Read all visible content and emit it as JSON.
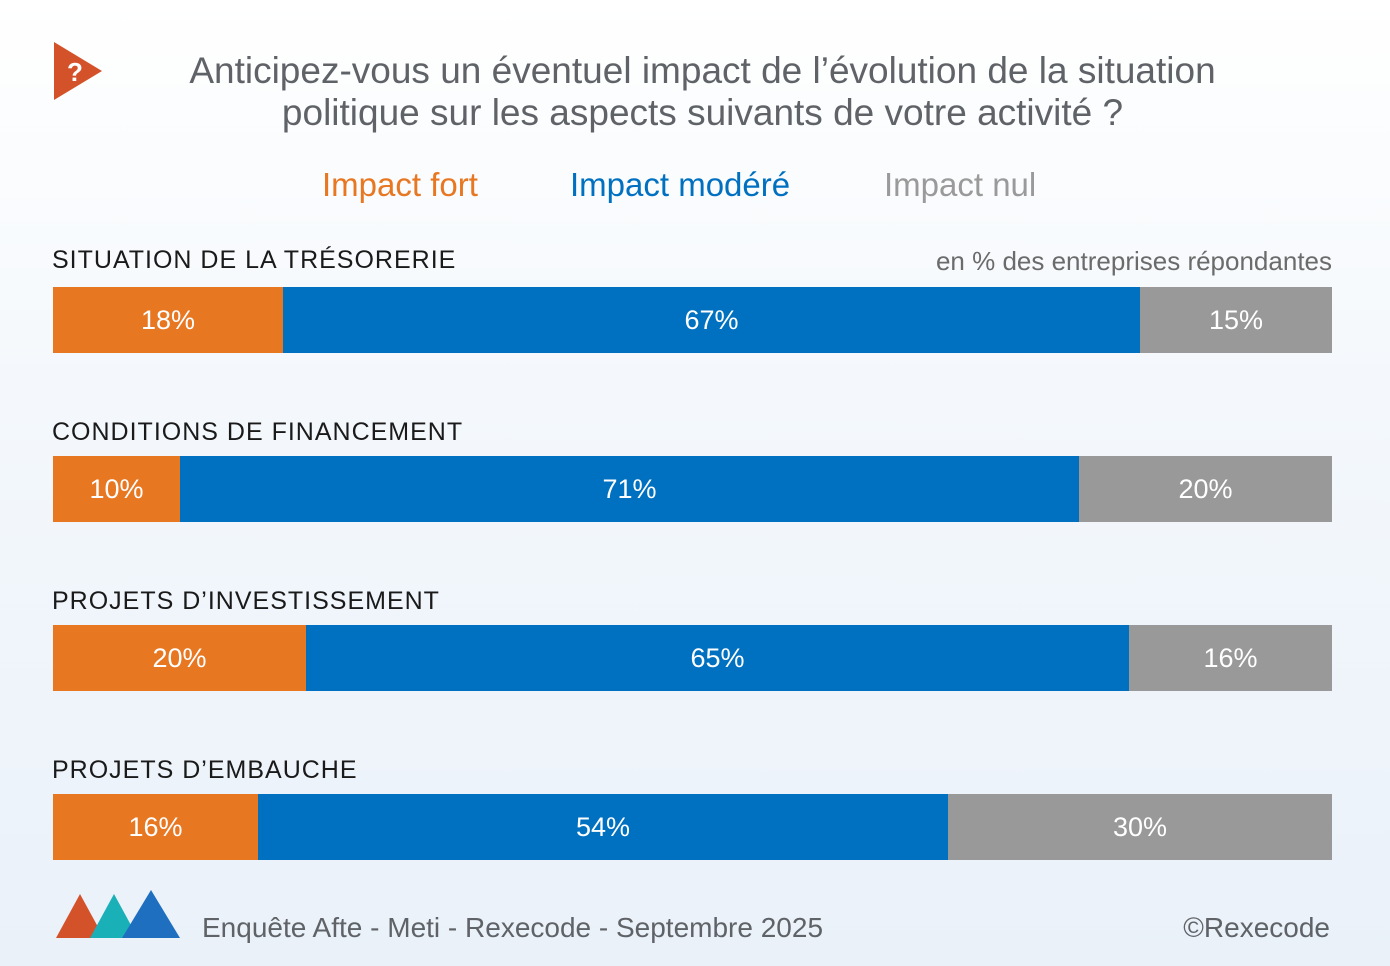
{
  "header": {
    "icon": "question-mark-icon",
    "icon_glyph": "?",
    "title_line1": "Anticipez-vous un éventuel impact de l’évolution de la situation",
    "title_line2": "politique sur les aspects suivants de votre activité ?"
  },
  "legend": {
    "fort": "Impact fort",
    "modere": "Impact modéré",
    "nul": "Impact nul"
  },
  "note": "en % des entreprises répondantes",
  "colors": {
    "fort": "#e87722",
    "modere": "#0070c0",
    "nul": "#999999"
  },
  "chart_data": {
    "type": "bar",
    "orientation": "horizontal",
    "stacked": true,
    "title": "Anticipez-vous un éventuel impact de l’évolution de la situation politique sur les aspects suivants de votre activité ?",
    "categories": [
      "SITUATION DE LA TRÉSORERIE",
      "CONDITIONS DE FINANCEMENT",
      "PROJETS D’INVESTISSEMENT",
      "PROJETS D’EMBAUCHE"
    ],
    "series": [
      {
        "name": "Impact fort",
        "values": [
          18,
          10,
          20,
          16
        ],
        "labels": [
          "18%",
          "10%",
          "20%",
          "16%"
        ]
      },
      {
        "name": "Impact modéré",
        "values": [
          67,
          71,
          65,
          54
        ],
        "labels": [
          "67%",
          "71%",
          "65%",
          "54%"
        ]
      },
      {
        "name": "Impact nul",
        "values": [
          15,
          20,
          16,
          30
        ],
        "labels": [
          "15%",
          "20%",
          "16%",
          "30%"
        ]
      }
    ],
    "unit": "en % des entreprises répondantes",
    "xlim": [
      0,
      100
    ]
  },
  "footer": {
    "logo": "rexecode-triangles-logo",
    "source": "Enquête Afte - Meti - Rexecode  - Septembre 2025",
    "copyright": "©Rexecode"
  }
}
